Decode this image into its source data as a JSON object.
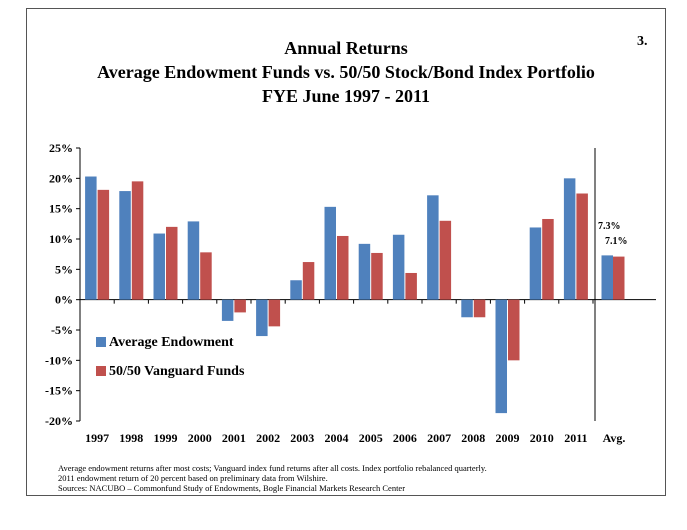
{
  "slide_number": "3.",
  "chart_data": {
    "type": "bar",
    "title_lines": [
      "Annual Returns",
      "Average Endowment Funds vs. 50/50 Stock/Bond Index Portfolio",
      "FYE June 1997 - 2011"
    ],
    "categories": [
      "1997",
      "1998",
      "1999",
      "2000",
      "2001",
      "2002",
      "2003",
      "2004",
      "2005",
      "2006",
      "2007",
      "2008",
      "2009",
      "2010",
      "2011"
    ],
    "series": [
      {
        "name": "Average Endowment",
        "color": "#4f81bd",
        "values": [
          20.3,
          17.9,
          10.9,
          12.9,
          -3.5,
          -6.0,
          3.2,
          15.3,
          9.2,
          10.7,
          17.2,
          -2.9,
          -18.7,
          11.9,
          20.0
        ]
      },
      {
        "name": "50/50 Vanguard Funds",
        "color": "#c0504d",
        "values": [
          18.1,
          19.5,
          12.0,
          7.8,
          -2.1,
          -4.4,
          6.2,
          10.5,
          7.7,
          4.4,
          13.0,
          -2.9,
          -10.0,
          13.3,
          17.5
        ]
      }
    ],
    "average": {
      "label": "Avg.",
      "values": [
        7.3,
        7.1
      ],
      "value_labels": [
        "7.3%",
        "7.1%"
      ]
    },
    "y_ticks": [
      "25%",
      "20%",
      "15%",
      "10%",
      "5%",
      "0%",
      "-5%",
      "-10%",
      "-15%",
      "-20%"
    ],
    "ylim": [
      -20,
      25
    ],
    "y_step": 5,
    "legend_position": "lower-left",
    "grid": false
  },
  "footnotes": [
    "Average endowment returns after most costs; Vanguard index fund returns after all costs. Index portfolio rebalanced quarterly.",
    "2011 endowment return of 20 percent based on preliminary data from Wilshire.",
    "Sources: NACUBO – Commonfund Study of Endowments, Bogle Financial Markets Research Center"
  ]
}
